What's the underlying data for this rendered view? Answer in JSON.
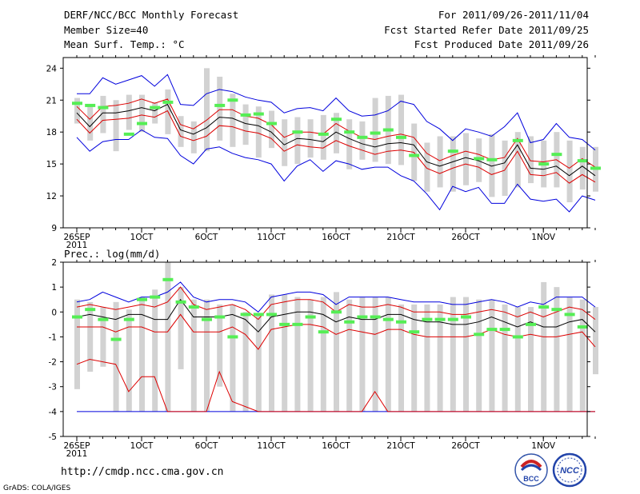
{
  "header": {
    "title": "DERF/NCC/BCC Monthly Forecast",
    "member_size": "Member Size=40",
    "variable": "Mean Surf. Temp.: °C",
    "period": "For 2011/09/26-2011/11/04",
    "start_date": "Fcst Started Refer Date 2011/09/25",
    "produced_date": "Fcst Produced Date 2011/09/26"
  },
  "footer": {
    "url": "http://cmdp.ncc.cma.gov.cn",
    "grads": "GrADS: COLA/IGES",
    "logo_bcc": "BCC",
    "logo_ncc": "NCC"
  },
  "colors": {
    "spread": "#d2d2d2",
    "obs": "#55ee55",
    "mean": "#000000",
    "quartile": "#dd0000",
    "extreme": "#0000dd"
  },
  "chart_data": [
    {
      "id": "temperature",
      "type": "line",
      "title": "Mean Surf. Temp.: °C",
      "ylim": [
        9,
        25
      ],
      "yticks": [
        9,
        12,
        15,
        18,
        21,
        24
      ],
      "xticks": [
        {
          "day": 0,
          "label": "26SEP",
          "label2": "2011"
        },
        {
          "day": 5,
          "label": "1OCT"
        },
        {
          "day": 10,
          "label": "6OCT"
        },
        {
          "day": 15,
          "label": "11OCT"
        },
        {
          "day": 20,
          "label": "16OCT"
        },
        {
          "day": 25,
          "label": "21OCT"
        },
        {
          "day": 30,
          "label": "26OCT"
        },
        {
          "day": 36,
          "label": "1NOV"
        }
      ],
      "days": 40,
      "mean": [
        19.8,
        18.5,
        19.8,
        19.8,
        20.0,
        20.3,
        20.0,
        20.6,
        18.2,
        17.8,
        18.4,
        19.4,
        19.3,
        18.8,
        18.6,
        18.0,
        16.8,
        17.4,
        17.3,
        17.1,
        18.0,
        17.4,
        16.9,
        16.6,
        16.9,
        17.0,
        16.8,
        15.2,
        14.8,
        15.2,
        15.6,
        15.3,
        14.8,
        15.1,
        16.8,
        14.6,
        14.5,
        14.8,
        13.9,
        14.8,
        13.9
      ],
      "q_upper": [
        20.4,
        19.2,
        20.4,
        20.5,
        20.7,
        21.1,
        20.7,
        21.1,
        18.7,
        18.3,
        19.1,
        20.1,
        20.1,
        19.5,
        19.3,
        18.7,
        17.5,
        18.0,
        18.0,
        17.8,
        18.8,
        18.1,
        17.5,
        17.3,
        17.6,
        17.8,
        17.5,
        16.0,
        15.3,
        15.8,
        16.2,
        15.9,
        15.4,
        15.6,
        17.4,
        15.3,
        15.2,
        15.4,
        14.6,
        15.5,
        14.7
      ],
      "q_lower": [
        19.2,
        17.9,
        19.1,
        19.2,
        19.3,
        19.6,
        19.4,
        20.0,
        17.6,
        17.2,
        17.6,
        18.6,
        18.5,
        18.1,
        17.9,
        17.4,
        16.2,
        16.8,
        16.6,
        16.5,
        17.2,
        16.7,
        16.3,
        15.9,
        16.2,
        16.3,
        16.1,
        14.6,
        14.1,
        14.6,
        15.0,
        14.7,
        14.0,
        14.4,
        16.2,
        14.0,
        13.9,
        14.2,
        13.2,
        14.0,
        13.3
      ],
      "max": [
        21.6,
        21.6,
        23.1,
        22.5,
        22.9,
        23.3,
        22.3,
        23.4,
        20.6,
        20.5,
        21.6,
        22.0,
        21.8,
        21.3,
        21.0,
        20.8,
        19.8,
        20.2,
        20.3,
        20.0,
        21.2,
        20.0,
        19.5,
        19.6,
        20.0,
        20.9,
        20.6,
        19.0,
        18.3,
        17.2,
        18.3,
        18.0,
        17.6,
        18.5,
        19.8,
        17.0,
        17.3,
        18.8,
        17.5,
        17.3,
        16.3
      ],
      "min": [
        17.5,
        16.2,
        17.1,
        17.3,
        17.3,
        18.2,
        17.5,
        17.4,
        15.8,
        15.0,
        16.4,
        16.6,
        16.0,
        15.6,
        15.4,
        15.0,
        13.4,
        14.8,
        15.4,
        14.3,
        15.3,
        15.0,
        14.5,
        14.7,
        14.7,
        13.9,
        13.4,
        12.2,
        10.7,
        12.9,
        12.4,
        12.8,
        11.3,
        11.3,
        13.1,
        11.7,
        11.5,
        11.7,
        10.5,
        12.0,
        11.6
      ],
      "spread_top": [
        21.2,
        20.5,
        21.4,
        21.0,
        21.5,
        21.5,
        20.8,
        22.0,
        19.5,
        19.0,
        24.0,
        23.2,
        21.6,
        20.6,
        20.4,
        20.0,
        19.2,
        19.4,
        19.2,
        19.6,
        19.8,
        19.2,
        19.0,
        21.2,
        21.4,
        21.5,
        18.8,
        17.0,
        17.6,
        17.6,
        17.9,
        17.4,
        17.8,
        17.2,
        18.0,
        17.6,
        17.2,
        18.0,
        17.2,
        16.6,
        16.6
      ],
      "spread_bottom": [
        18.8,
        17.2,
        17.9,
        16.2,
        18.2,
        18.0,
        18.8,
        17.8,
        16.6,
        16.0,
        16.2,
        17.2,
        16.6,
        16.8,
        15.6,
        16.5,
        14.8,
        15.0,
        15.6,
        15.4,
        16.0,
        14.5,
        15.4,
        15.2,
        15.0,
        14.9,
        13.4,
        12.4,
        12.8,
        12.4,
        13.0,
        13.3,
        11.9,
        12.0,
        12.8,
        13.2,
        12.8,
        12.8,
        11.4,
        12.6,
        12.4
      ],
      "obs": [
        20.7,
        20.5,
        20.3,
        null,
        17.8,
        18.8,
        20.3,
        20.8,
        null,
        null,
        null,
        20.5,
        21.0,
        19.6,
        19.7,
        18.8,
        null,
        18.0,
        null,
        17.8,
        19.2,
        18.0,
        17.5,
        17.9,
        18.2,
        17.5,
        15.8,
        null,
        null,
        16.2,
        null,
        15.5,
        15.4,
        null,
        17.2,
        null,
        15.0,
        15.9,
        null,
        15.3,
        14.6
      ]
    },
    {
      "id": "precipitation",
      "type": "line",
      "title": "Prec.: log(mm/d)",
      "ylim": [
        -5,
        2
      ],
      "yticks": [
        -5,
        -4,
        -3,
        -2,
        -1,
        0,
        1,
        2
      ],
      "xticks": [
        {
          "day": 0,
          "label": "26SEP",
          "label2": "2011"
        },
        {
          "day": 5,
          "label": "1OCT"
        },
        {
          "day": 10,
          "label": "6OCT"
        },
        {
          "day": 15,
          "label": "11OCT"
        },
        {
          "day": 20,
          "label": "16OCT"
        },
        {
          "day": 25,
          "label": "21OCT"
        },
        {
          "day": 30,
          "label": "26OCT"
        },
        {
          "day": 36,
          "label": "1NOV"
        }
      ],
      "days": 40,
      "mean": [
        -0.2,
        -0.1,
        -0.2,
        -0.3,
        -0.1,
        -0.1,
        -0.3,
        -0.3,
        0.5,
        -0.2,
        -0.2,
        -0.2,
        -0.1,
        -0.3,
        -0.8,
        -0.2,
        -0.1,
        0.0,
        0.0,
        -0.1,
        -0.4,
        -0.2,
        -0.3,
        -0.3,
        -0.1,
        -0.1,
        -0.3,
        -0.4,
        -0.4,
        -0.5,
        -0.5,
        -0.4,
        -0.2,
        -0.4,
        -0.6,
        -0.4,
        -0.6,
        -0.6,
        -0.4,
        -0.3,
        -0.8
      ],
      "q_upper": [
        0.2,
        0.3,
        0.2,
        0.1,
        0.2,
        0.3,
        0.2,
        0.4,
        1.0,
        0.3,
        0.1,
        0.2,
        0.3,
        0.1,
        -0.3,
        0.3,
        0.4,
        0.5,
        0.5,
        0.4,
        0.0,
        0.3,
        0.2,
        0.2,
        0.3,
        0.2,
        0.0,
        0.0,
        0.0,
        -0.1,
        -0.1,
        0.0,
        0.1,
        0.0,
        -0.2,
        0.0,
        -0.2,
        0.0,
        0.2,
        0.1,
        -0.3
      ],
      "q_lower": [
        -0.6,
        -0.6,
        -0.6,
        -0.8,
        -0.6,
        -0.6,
        -0.8,
        -0.8,
        -0.1,
        -0.8,
        -0.8,
        -0.8,
        -0.6,
        -0.9,
        -1.5,
        -0.7,
        -0.6,
        -0.5,
        -0.5,
        -0.6,
        -0.9,
        -0.7,
        -0.8,
        -0.9,
        -0.7,
        -0.7,
        -0.9,
        -1.0,
        -1.0,
        -1.0,
        -1.0,
        -0.9,
        -0.7,
        -0.9,
        -1.0,
        -0.9,
        -1.0,
        -1.0,
        -0.9,
        -0.8,
        -1.4
      ],
      "max": [
        0.4,
        0.5,
        0.8,
        0.6,
        0.4,
        0.6,
        0.6,
        0.8,
        1.2,
        0.6,
        0.4,
        0.5,
        0.5,
        0.4,
        0.0,
        0.6,
        0.7,
        0.8,
        0.8,
        0.7,
        0.3,
        0.6,
        0.6,
        0.6,
        0.6,
        0.5,
        0.4,
        0.4,
        0.4,
        0.3,
        0.3,
        0.4,
        0.5,
        0.4,
        0.2,
        0.4,
        0.3,
        0.6,
        0.6,
        0.6,
        0.2
      ],
      "min": [
        -4.0,
        -4.0,
        -4.0,
        -4.0,
        -4.0,
        -4.0,
        -4.0,
        -4.0,
        -4.0,
        -4.0,
        -4.0,
        -4.0,
        -4.0,
        -4.0,
        -4.0,
        -4.0,
        -4.0,
        -4.0,
        -4.0,
        -4.0,
        -4.0,
        -4.0,
        -4.0,
        -4.0,
        -4.0,
        -4.0,
        -4.0,
        -4.0,
        -4.0,
        -4.0,
        -4.0,
        -4.0,
        -4.0,
        -4.0,
        -4.0,
        -4.0,
        -4.0,
        -4.0,
        -4.0,
        -4.0,
        -4.0
      ],
      "lower_red": [
        -2.1,
        -1.9,
        -2.0,
        -2.1,
        -3.2,
        -2.6,
        -2.6,
        -4.0,
        -4.0,
        -4.0,
        -4.0,
        -2.4,
        -3.6,
        -3.8,
        -4.0,
        -4.0,
        -4.0,
        -4.0,
        -4.0,
        -4.0,
        -4.0,
        -4.0,
        -4.0,
        -3.2,
        -4.0,
        -4.0,
        -4.0,
        -4.0,
        -4.0,
        -4.0,
        -4.0,
        -4.0,
        -4.0,
        -4.0,
        -4.0,
        -4.0,
        -4.0,
        -4.0,
        -4.0,
        -4.0,
        -4.0
      ],
      "spread_top": [
        0.5,
        0.4,
        0.2,
        0.4,
        0.1,
        0.6,
        0.9,
        2.0,
        1.0,
        0.5,
        0.5,
        0.3,
        0.3,
        0.0,
        -0.1,
        0.7,
        0.7,
        0.6,
        0.5,
        0.6,
        0.8,
        0.5,
        0.6,
        0.6,
        0.6,
        0.3,
        0.3,
        0.3,
        0.3,
        0.6,
        0.6,
        0.5,
        0.5,
        0.3,
        0.2,
        0.2,
        1.2,
        1.0,
        0.6,
        0.5,
        0.2
      ],
      "spread_bottom": [
        -3.1,
        -2.4,
        -2.2,
        -4.0,
        -4.0,
        -4.0,
        -4.0,
        -4.0,
        -2.3,
        -4.0,
        -4.0,
        -3.0,
        -4.0,
        -4.0,
        -4.0,
        -4.0,
        -4.0,
        -4.0,
        -4.0,
        -4.0,
        -4.0,
        -4.0,
        -4.0,
        -4.0,
        -4.0,
        -4.0,
        -4.0,
        -4.0,
        -4.0,
        -4.0,
        -4.0,
        -4.0,
        -4.0,
        -4.0,
        -4.0,
        -4.0,
        -4.0,
        -4.0,
        -4.0,
        -4.0,
        -2.5
      ],
      "obs": [
        -0.2,
        0.1,
        -0.3,
        -1.1,
        -0.3,
        0.5,
        0.6,
        1.3,
        0.4,
        0.2,
        -0.3,
        -0.2,
        -1.0,
        -0.1,
        -0.1,
        -0.1,
        -0.5,
        -0.5,
        -0.2,
        -0.8,
        0.0,
        -0.4,
        -0.2,
        -0.2,
        -0.3,
        -0.4,
        -0.8,
        -0.3,
        -0.3,
        -0.3,
        -0.2,
        -0.9,
        -0.7,
        -0.7,
        -1.0,
        -0.5,
        0.2,
        0.1,
        -0.1,
        -0.6,
        null
      ]
    }
  ]
}
